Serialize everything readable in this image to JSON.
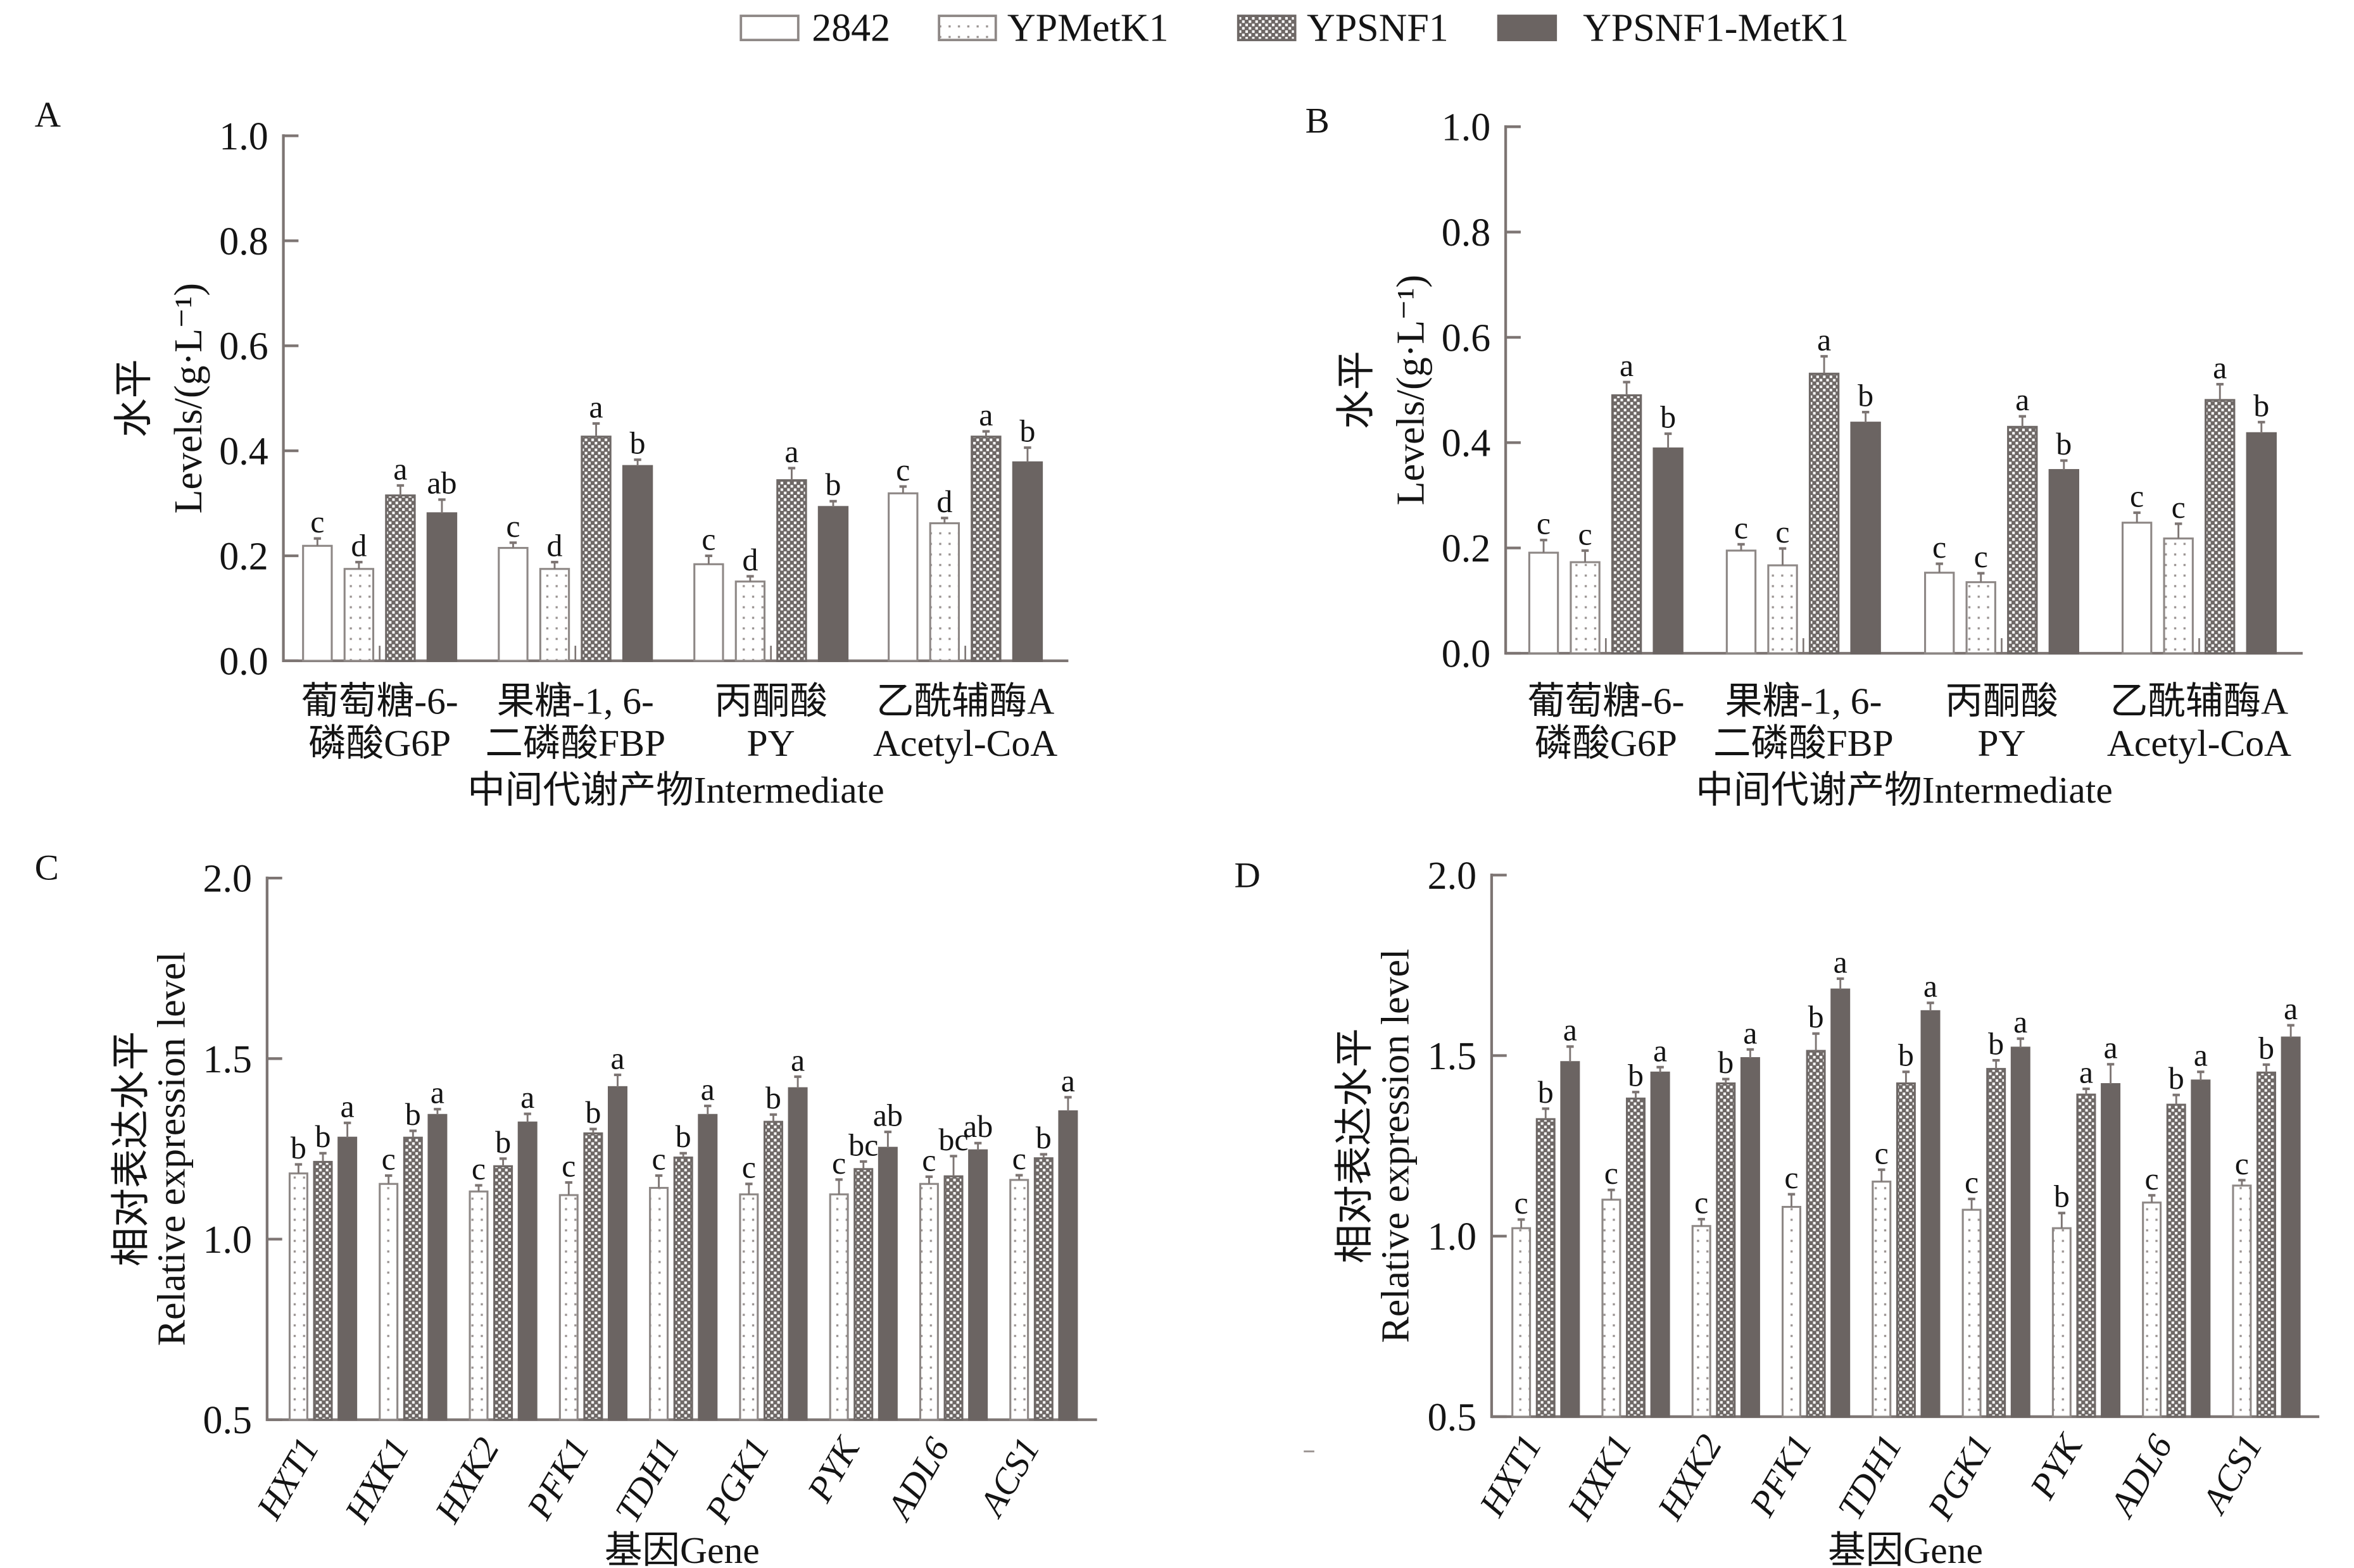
{
  "figure": {
    "panel_labels": [
      "A",
      "B",
      "C",
      "D"
    ],
    "legend": [
      {
        "label": "2842",
        "swatch": "open"
      },
      {
        "label": "YPMetK1",
        "swatch": "dotted"
      },
      {
        "label": "YPSNF1",
        "swatch": "checkered"
      },
      {
        "label": "YPSNF1-MetK1",
        "swatch": "solid"
      }
    ],
    "colors": {
      "solid_bar": "#6b6462",
      "checker_dark": "#6e6866",
      "outline": "#8e8886",
      "axis": "#7d7573",
      "text": "#141414"
    }
  },
  "chart_data": [
    {
      "panel": "A",
      "type": "bar",
      "title": "",
      "xlabel": "中间代谢产物Intermediate",
      "ylabel": "水平 Levels/(g·L⁻¹)",
      "ylabel_lines": [
        "水平",
        "Levels/(g·L⁻¹)"
      ],
      "ylim": [
        0,
        1.0
      ],
      "yticks": [
        0,
        0.2,
        0.4,
        0.6,
        0.8,
        1.0
      ],
      "ytick_labels": [
        "0.0",
        "0.2",
        "0.4",
        "0.6",
        "0.8",
        "1.0"
      ],
      "categories": [
        "葡萄糖-6-磷酸G6P",
        "果糖-1, 6-二磷酸FBP",
        "丙酮酸PY",
        "乙酰辅酶A Acetyl-CoA"
      ],
      "category_label_lines": [
        [
          "葡萄糖-6-",
          "磷酸G6P"
        ],
        [
          "果糖-1, 6-",
          "二磷酸FBP"
        ],
        [
          "丙酮酸",
          "PY"
        ],
        [
          "乙酰辅酶A",
          "Acetyl-CoA"
        ]
      ],
      "grid": false,
      "legend": "top-center (shared)",
      "series": [
        {
          "name": "2842",
          "swatch": "open",
          "values": [
            0.219,
            0.215,
            0.184,
            0.319
          ],
          "errors": [
            0.014,
            0.01,
            0.016,
            0.013
          ],
          "letters": [
            "c",
            "c",
            "c",
            "c"
          ]
        },
        {
          "name": "YPMetK1",
          "swatch": "dotted",
          "values": [
            0.175,
            0.175,
            0.151,
            0.262
          ],
          "errors": [
            0.013,
            0.013,
            0.01,
            0.01
          ],
          "letters": [
            "d",
            "d",
            "d",
            "d"
          ]
        },
        {
          "name": "YPSNF1",
          "swatch": "checkered",
          "values": [
            0.315,
            0.427,
            0.344,
            0.427
          ],
          "errors": [
            0.019,
            0.025,
            0.023,
            0.01
          ],
          "letters": [
            "a",
            "a",
            "a",
            "a"
          ]
        },
        {
          "name": "YPSNF1-MetK1",
          "swatch": "solid",
          "values": [
            0.281,
            0.371,
            0.293,
            0.378
          ],
          "errors": [
            0.026,
            0.012,
            0.011,
            0.028
          ],
          "letters": [
            "ab",
            "b",
            "b",
            "b"
          ]
        }
      ]
    },
    {
      "panel": "B",
      "type": "bar",
      "title": "",
      "xlabel": "中间代谢产物Intermediate",
      "ylabel": "水平 Levels/(g·L⁻¹)",
      "ylabel_lines": [
        "水平",
        "Levels/(g·L⁻¹)"
      ],
      "ylim": [
        0,
        1.0
      ],
      "yticks": [
        0,
        0.2,
        0.4,
        0.6,
        0.8,
        1.0
      ],
      "ytick_labels": [
        "0.0",
        "0.2",
        "0.4",
        "0.6",
        "0.8",
        "1.0"
      ],
      "categories": [
        "葡萄糖-6-磷酸G6P",
        "果糖-1, 6-二磷酸FBP",
        "丙酮酸PY",
        "乙酰辅酶A Acetyl-CoA"
      ],
      "category_label_lines": [
        [
          "葡萄糖-6-",
          "磷酸G6P"
        ],
        [
          "果糖-1, 6-",
          "二磷酸FBP"
        ],
        [
          "丙酮酸",
          "PY"
        ],
        [
          "乙酰辅酶A",
          "Acetyl-CoA"
        ]
      ],
      "grid": false,
      "legend": "top-center (shared)",
      "series": [
        {
          "name": "2842",
          "swatch": "open",
          "values": [
            0.191,
            0.195,
            0.153,
            0.248
          ],
          "errors": [
            0.024,
            0.012,
            0.017,
            0.019
          ],
          "letters": [
            "c",
            "c",
            "c",
            "c"
          ]
        },
        {
          "name": "YPMetK1",
          "swatch": "dotted",
          "values": [
            0.173,
            0.167,
            0.135,
            0.218
          ],
          "errors": [
            0.022,
            0.032,
            0.017,
            0.028
          ],
          "letters": [
            "c",
            "c",
            "c",
            "c"
          ]
        },
        {
          "name": "YPSNF1",
          "swatch": "checkered",
          "values": [
            0.49,
            0.531,
            0.43,
            0.481
          ],
          "errors": [
            0.025,
            0.033,
            0.02,
            0.03
          ],
          "letters": [
            "a",
            "a",
            "a",
            "a"
          ]
        },
        {
          "name": "YPSNF1-MetK1",
          "swatch": "solid",
          "values": [
            0.389,
            0.438,
            0.348,
            0.418
          ],
          "errors": [
            0.028,
            0.02,
            0.018,
            0.021
          ],
          "letters": [
            "b",
            "b",
            "b",
            "b"
          ]
        }
      ]
    },
    {
      "panel": "C",
      "type": "bar",
      "title": "",
      "xlabel": "基因Gene",
      "ylabel": "相对表达水平 Relative expression level",
      "ylabel_lines": [
        "相对表达水平",
        "Relative expression level"
      ],
      "ylim": [
        0.5,
        2.0
      ],
      "yticks": [
        0.5,
        1.0,
        1.5,
        2.0
      ],
      "ytick_labels": [
        "0.5",
        "1.0",
        "1.5",
        "2.0"
      ],
      "categories": [
        "HXT1",
        "HXK1",
        "HXK2",
        "PFK1",
        "TDH1",
        "PGK1",
        "PYK",
        "ADL6",
        "ACS1"
      ],
      "category_style": "italic",
      "grid": false,
      "legend": "top-center (shared)",
      "series": [
        {
          "name": "YPMetK1",
          "swatch": "dotted",
          "values": [
            1.182,
            1.153,
            1.132,
            1.122,
            1.142,
            1.124,
            1.124,
            1.153,
            1.164
          ],
          "errors": [
            0.025,
            0.023,
            0.017,
            0.035,
            0.034,
            0.029,
            0.041,
            0.02,
            0.013
          ],
          "letters": [
            "b",
            "c",
            "c",
            "c",
            "c",
            "c",
            "c",
            "c",
            "c"
          ]
        },
        {
          "name": "YPSNF1",
          "swatch": "checkered",
          "values": [
            1.214,
            1.281,
            1.202,
            1.293,
            1.226,
            1.325,
            1.194,
            1.174,
            1.224
          ],
          "errors": [
            0.024,
            0.019,
            0.021,
            0.012,
            0.012,
            0.02,
            0.021,
            0.056,
            0.011
          ],
          "letters": [
            "b",
            "b",
            "b",
            "b",
            "b",
            "b",
            "bc",
            "bc",
            "b"
          ]
        },
        {
          "name": "YPSNF1-MetK1",
          "swatch": "solid",
          "values": [
            1.281,
            1.344,
            1.323,
            1.421,
            1.344,
            1.418,
            1.253,
            1.246,
            1.354
          ],
          "errors": [
            0.041,
            0.016,
            0.024,
            0.034,
            0.025,
            0.032,
            0.044,
            0.02,
            0.039
          ],
          "letters": [
            "a",
            "a",
            "a",
            "a",
            "a",
            "a",
            "ab",
            "ab",
            "a"
          ]
        }
      ]
    },
    {
      "panel": "D",
      "type": "bar",
      "title": "",
      "xlabel": "基因Gene",
      "ylabel": "相对表达水平 Relative expression level",
      "ylabel_lines": [
        "相对表达水平",
        "Relative expression level"
      ],
      "ylim": [
        0.5,
        2.0
      ],
      "yticks": [
        0.5,
        1.0,
        1.5,
        2.0
      ],
      "ytick_labels": [
        "0.5",
        "1.0",
        "1.5",
        "2.0"
      ],
      "categories": [
        "HXT1",
        "HXK1",
        "HXK2",
        "PFK1",
        "TDH1",
        "PGK1",
        "PYK",
        "ADL6",
        "ACS1"
      ],
      "category_style": "italic",
      "grid": false,
      "legend": "top-center (shared)",
      "series": [
        {
          "name": "YPMetK1",
          "swatch": "dotted",
          "values": [
            1.022,
            1.101,
            1.028,
            1.081,
            1.151,
            1.073,
            1.022,
            1.093,
            1.14
          ],
          "errors": [
            0.024,
            0.027,
            0.019,
            0.035,
            0.033,
            0.03,
            0.042,
            0.02,
            0.015
          ],
          "letters": [
            "c",
            "c",
            "c",
            "c",
            "c",
            "c",
            "b",
            "c",
            "c"
          ]
        },
        {
          "name": "YPSNF1",
          "swatch": "checkered",
          "values": [
            1.324,
            1.381,
            1.423,
            1.513,
            1.423,
            1.463,
            1.392,
            1.364,
            1.453
          ],
          "errors": [
            0.029,
            0.018,
            0.012,
            0.048,
            0.032,
            0.024,
            0.016,
            0.027,
            0.022
          ],
          "letters": [
            "b",
            "b",
            "b",
            "b",
            "b",
            "b",
            "a",
            "b",
            "b"
          ]
        },
        {
          "name": "YPSNF1-MetK1",
          "swatch": "solid",
          "values": [
            1.482,
            1.453,
            1.493,
            1.683,
            1.623,
            1.522,
            1.421,
            1.431,
            1.55
          ],
          "errors": [
            0.043,
            0.015,
            0.024,
            0.03,
            0.023,
            0.025,
            0.055,
            0.024,
            0.034
          ],
          "letters": [
            "a",
            "a",
            "a",
            "a",
            "a",
            "a",
            "a",
            "a",
            "a"
          ]
        }
      ]
    }
  ]
}
